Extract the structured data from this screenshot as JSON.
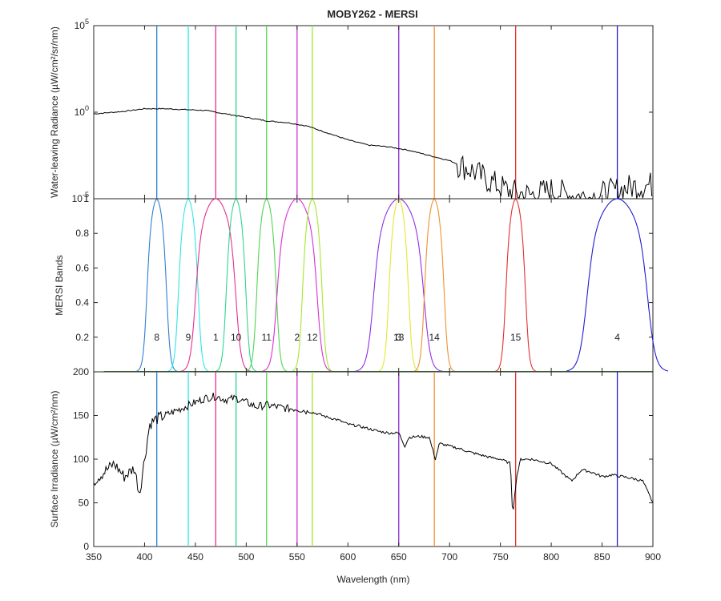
{
  "chart_data": {
    "type": "line",
    "title": "MOBY262 - MERSI",
    "xlabel": "Wavelength (nm)",
    "xlim": [
      350,
      900
    ],
    "xticks": [
      "350",
      "400",
      "450",
      "500",
      "550",
      "600",
      "650",
      "700",
      "750",
      "800",
      "850",
      "900"
    ],
    "band_centers": [
      {
        "band": "8",
        "nm": 412,
        "color": "#2f7fd0"
      },
      {
        "band": "9",
        "nm": 443,
        "color": "#2fe6e6"
      },
      {
        "band": "1",
        "nm": 470,
        "color": "#e62f8f"
      },
      {
        "band": "10",
        "nm": 490,
        "color": "#2fd68f"
      },
      {
        "band": "11",
        "nm": 520,
        "color": "#4fd64f"
      },
      {
        "band": "2",
        "nm": 550,
        "color": "#d62fd6"
      },
      {
        "band": "12",
        "nm": 565,
        "color": "#a6e62f"
      },
      {
        "band": "13",
        "nm": 650,
        "color": "#e6e62f"
      },
      {
        "band": "3",
        "nm": 650,
        "color": "#8f2fe6"
      },
      {
        "band": "14",
        "nm": 685,
        "color": "#f0902f"
      },
      {
        "band": "15",
        "nm": 765,
        "color": "#e62f2f"
      },
      {
        "band": "4",
        "nm": 865,
        "color": "#1f1fd0"
      }
    ],
    "panels": [
      {
        "ylabel": "Water-leaving Radiance (µW/cm²/sr/nm)",
        "yscale": "log",
        "ylim_exp": [
          -5,
          5
        ],
        "ytick_exps": [
          "-5",
          "0",
          "5"
        ],
        "series": [
          {
            "values_log10": [
              [
                350,
                -0.1
              ],
              [
                360,
                -0.05
              ],
              [
                380,
                0.05
              ],
              [
                400,
                0.2
              ],
              [
                420,
                0.2
              ],
              [
                440,
                0.15
              ],
              [
                460,
                0.1
              ],
              [
                480,
                -0.1
              ],
              [
                500,
                -0.3
              ],
              [
                520,
                -0.5
              ],
              [
                540,
                -0.6
              ],
              [
                560,
                -0.8
              ],
              [
                580,
                -1.2
              ],
              [
                600,
                -1.6
              ],
              [
                620,
                -1.9
              ],
              [
                640,
                -2.0
              ],
              [
                660,
                -2.2
              ],
              [
                680,
                -2.5
              ],
              [
                700,
                -2.8
              ],
              [
                720,
                -3.3
              ],
              [
                740,
                -4.0
              ],
              [
                760,
                -4.6
              ],
              [
                780,
                -4.8
              ],
              [
                800,
                -4.5
              ],
              [
                820,
                -4.8
              ],
              [
                840,
                -4.9
              ],
              [
                860,
                -4.6
              ],
              [
                880,
                -4.3
              ],
              [
                900,
                -4.2
              ]
            ]
          }
        ]
      },
      {
        "ylabel": "MERSI Bands",
        "yscale": "linear",
        "ylim": [
          0,
          1
        ],
        "yticks": [
          "0.2",
          "0.4",
          "0.6",
          "0.8",
          "1"
        ],
        "band_label_y": 0.2,
        "bands": [
          {
            "name": "8",
            "center": 412,
            "width": 20,
            "color": "#2f7fd0"
          },
          {
            "name": "9",
            "center": 443,
            "width": 20,
            "color": "#2fe6e6"
          },
          {
            "name": "1",
            "center": 470,
            "width": 40,
            "color": "#e62f8f"
          },
          {
            "name": "10",
            "center": 490,
            "width": 20,
            "color": "#2fd68f"
          },
          {
            "name": "11",
            "center": 520,
            "width": 20,
            "color": "#4fd64f"
          },
          {
            "name": "2",
            "center": 550,
            "width": 40,
            "color": "#d62fd6"
          },
          {
            "name": "12",
            "center": 565,
            "width": 20,
            "color": "#a6e62f"
          },
          {
            "name": "13",
            "center": 650,
            "width": 20,
            "color": "#e6e62f"
          },
          {
            "name": "3",
            "center": 650,
            "width": 50,
            "color": "#8f2fe6"
          },
          {
            "name": "14",
            "center": 685,
            "width": 20,
            "color": "#f0902f"
          },
          {
            "name": "15",
            "center": 765,
            "width": 20,
            "color": "#e62f2f"
          },
          {
            "name": "4",
            "center": 865,
            "width": 60,
            "color": "#1f1fd0"
          }
        ]
      },
      {
        "ylabel": "Surface Irradiance (µW/cm²/nm)",
        "yscale": "linear",
        "ylim": [
          0,
          200
        ],
        "yticks": [
          "0",
          "50",
          "100",
          "150",
          "200"
        ],
        "series": [
          {
            "values": [
              [
                350,
                75
              ],
              [
                360,
                85
              ],
              [
                370,
                95
              ],
              [
                380,
                80
              ],
              [
                390,
                90
              ],
              [
                395,
                60
              ],
              [
                400,
                100
              ],
              [
                405,
                140
              ],
              [
                410,
                145
              ],
              [
                420,
                150
              ],
              [
                430,
                155
              ],
              [
                440,
                160
              ],
              [
                450,
                165
              ],
              [
                460,
                170
              ],
              [
                470,
                172
              ],
              [
                480,
                168
              ],
              [
                490,
                170
              ],
              [
                500,
                165
              ],
              [
                510,
                160
              ],
              [
                520,
                162
              ],
              [
                530,
                160
              ],
              [
                540,
                158
              ],
              [
                550,
                158
              ],
              [
                560,
                155
              ],
              [
                570,
                152
              ],
              [
                580,
                148
              ],
              [
                590,
                145
              ],
              [
                600,
                140
              ],
              [
                610,
                138
              ],
              [
                620,
                135
              ],
              [
                630,
                132
              ],
              [
                640,
                130
              ],
              [
                650,
                130
              ],
              [
                656,
                115
              ],
              [
                660,
                125
              ],
              [
                670,
                126
              ],
              [
                680,
                125
              ],
              [
                686,
                100
              ],
              [
                690,
                118
              ],
              [
                700,
                115
              ],
              [
                710,
                112
              ],
              [
                720,
                108
              ],
              [
                730,
                105
              ],
              [
                740,
                102
              ],
              [
                750,
                100
              ],
              [
                760,
                95
              ],
              [
                762,
                35
              ],
              [
                766,
                80
              ],
              [
                770,
                100
              ],
              [
                780,
                100
              ],
              [
                800,
                95
              ],
              [
                810,
                85
              ],
              [
                820,
                75
              ],
              [
                830,
                88
              ],
              [
                840,
                85
              ],
              [
                850,
                80
              ],
              [
                860,
                82
              ],
              [
                870,
                80
              ],
              [
                880,
                78
              ],
              [
                890,
                75
              ],
              [
                900,
                50
              ]
            ]
          }
        ]
      }
    ]
  }
}
